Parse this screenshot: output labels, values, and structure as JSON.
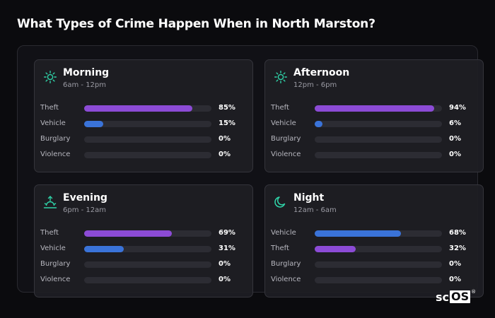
{
  "title": "What Types of Crime Happen When in North Marston?",
  "colors": {
    "purple": "#8c4bd6",
    "blue": "#3a73d9",
    "icon": "#2fd3a8"
  },
  "logo": {
    "prefix": "sc",
    "box": "OS",
    "mark": "®"
  },
  "chart_data": [
    {
      "type": "bar",
      "title": "Morning",
      "subtitle": "6am - 12pm",
      "icon": "sun-icon",
      "categories": [
        "Theft",
        "Vehicle",
        "Burglary",
        "Violence"
      ],
      "values": [
        85,
        15,
        0,
        0
      ],
      "labels": [
        "85%",
        "15%",
        "0%",
        "0%"
      ],
      "colors": [
        "purple",
        "blue",
        "purple",
        "purple"
      ],
      "ylim": [
        0,
        100
      ]
    },
    {
      "type": "bar",
      "title": "Afternoon",
      "subtitle": "12pm - 6pm",
      "icon": "sun-icon",
      "categories": [
        "Theft",
        "Vehicle",
        "Burglary",
        "Violence"
      ],
      "values": [
        94,
        6,
        0,
        0
      ],
      "labels": [
        "94%",
        "6%",
        "0%",
        "0%"
      ],
      "colors": [
        "purple",
        "blue",
        "purple",
        "purple"
      ],
      "ylim": [
        0,
        100
      ]
    },
    {
      "type": "bar",
      "title": "Evening",
      "subtitle": "6pm - 12am",
      "icon": "sunset-icon",
      "categories": [
        "Theft",
        "Vehicle",
        "Burglary",
        "Violence"
      ],
      "values": [
        69,
        31,
        0,
        0
      ],
      "labels": [
        "69%",
        "31%",
        "0%",
        "0%"
      ],
      "colors": [
        "purple",
        "blue",
        "purple",
        "purple"
      ],
      "ylim": [
        0,
        100
      ]
    },
    {
      "type": "bar",
      "title": "Night",
      "subtitle": "12am - 6am",
      "icon": "moon-icon",
      "categories": [
        "Vehicle",
        "Theft",
        "Burglary",
        "Violence"
      ],
      "values": [
        68,
        32,
        0,
        0
      ],
      "labels": [
        "68%",
        "32%",
        "0%",
        "0%"
      ],
      "colors": [
        "blue",
        "purple",
        "purple",
        "purple"
      ],
      "ylim": [
        0,
        100
      ]
    }
  ]
}
